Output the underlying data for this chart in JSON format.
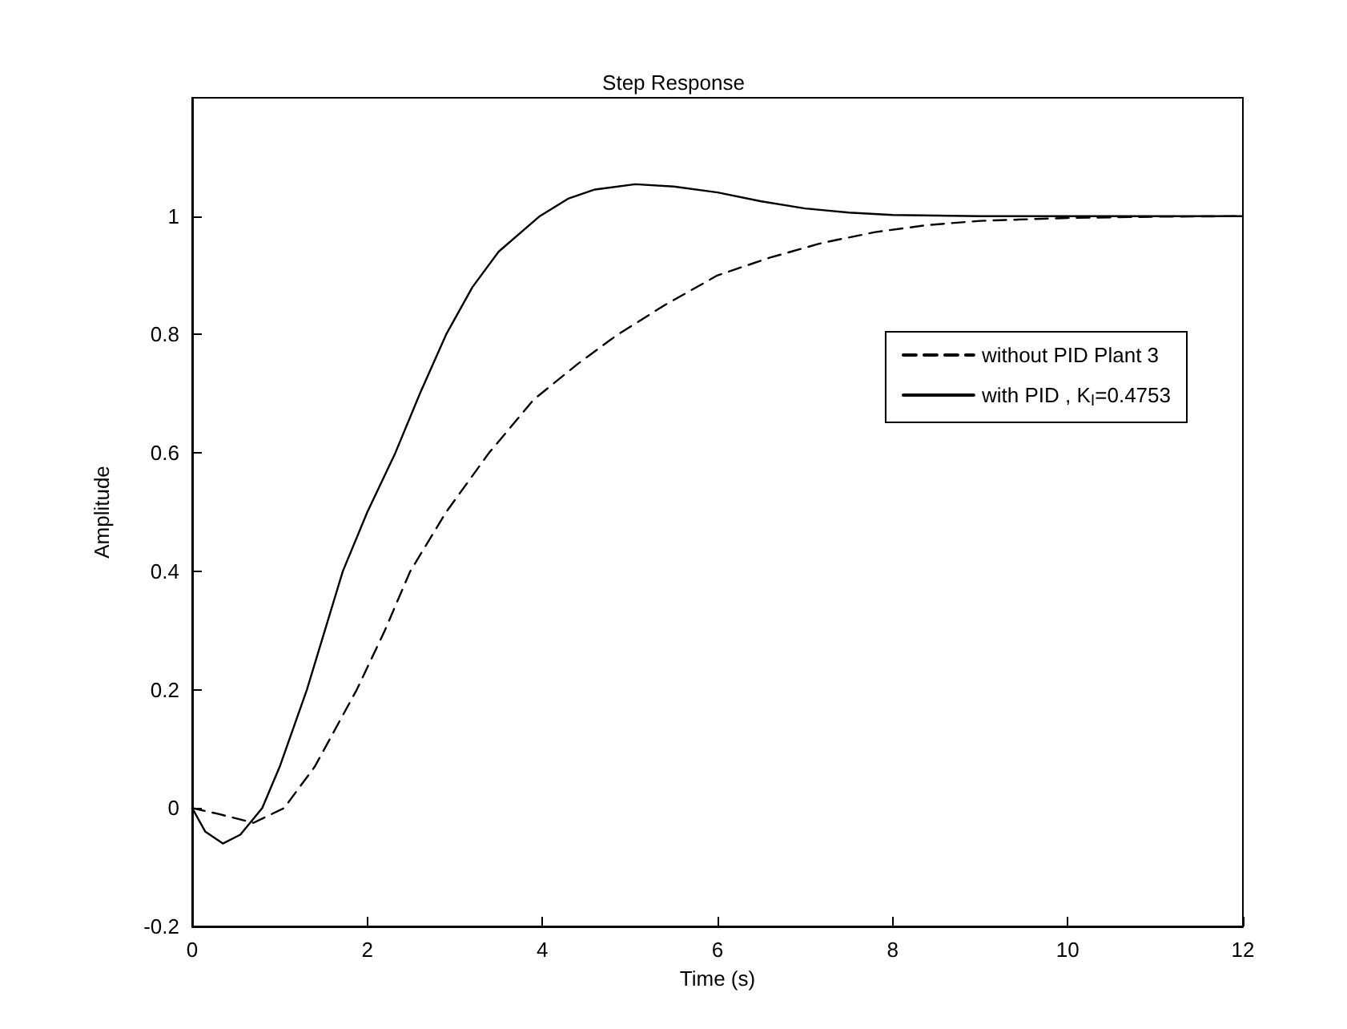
{
  "chart_data": {
    "type": "line",
    "title": "Step Response",
    "xlabel": "Time (s)",
    "ylabel": "Amplitude",
    "xlim": [
      0,
      12
    ],
    "xticks": [
      0,
      2,
      4,
      6,
      8,
      10,
      12
    ],
    "ylim": [
      -0.2,
      1.2
    ],
    "yticks": [
      -0.2,
      0,
      0.2,
      0.4,
      0.6,
      0.8,
      1
    ],
    "grid": false,
    "legend": "right",
    "marker": "none",
    "series": [
      {
        "name": "without PID Plant 3",
        "color": "#000000",
        "line_style": "dashed",
        "x": [
          0,
          0.3,
          0.7,
          1.05,
          1.4,
          1.88,
          2.2,
          2.49,
          2.9,
          3.39,
          3.9,
          4.4,
          4.86,
          5.4,
          6.0,
          6.6,
          7.2,
          7.8,
          8.4,
          9,
          10,
          11,
          12
        ],
        "values": [
          0,
          -0.01,
          -0.025,
          0,
          0.07,
          0.2,
          0.3,
          0.4,
          0.5,
          0.6,
          0.69,
          0.75,
          0.8,
          0.85,
          0.9,
          0.93,
          0.955,
          0.973,
          0.985,
          0.992,
          0.997,
          0.999,
          1.0
        ]
      },
      {
        "name": "with PID , K$_{I}$=0.4753",
        "color": "#000000",
        "line_style": "solid",
        "x": [
          0,
          0.15,
          0.35,
          0.55,
          0.8,
          1.0,
          1.31,
          1.72,
          2.0,
          2.32,
          2.6,
          2.9,
          3.2,
          3.5,
          3.97,
          4.3,
          4.6,
          5.06,
          5.5,
          6.0,
          6.5,
          7.0,
          7.5,
          8.0,
          9,
          10,
          11,
          12
        ],
        "values": [
          0,
          -0.04,
          -0.06,
          -0.045,
          0,
          0.07,
          0.2,
          0.4,
          0.5,
          0.6,
          0.7,
          0.8,
          0.88,
          0.94,
          1.0,
          1.03,
          1.045,
          1.054,
          1.05,
          1.04,
          1.025,
          1.013,
          1.006,
          1.002,
          1.0,
          1.0,
          1.0,
          1.0
        ]
      }
    ]
  }
}
